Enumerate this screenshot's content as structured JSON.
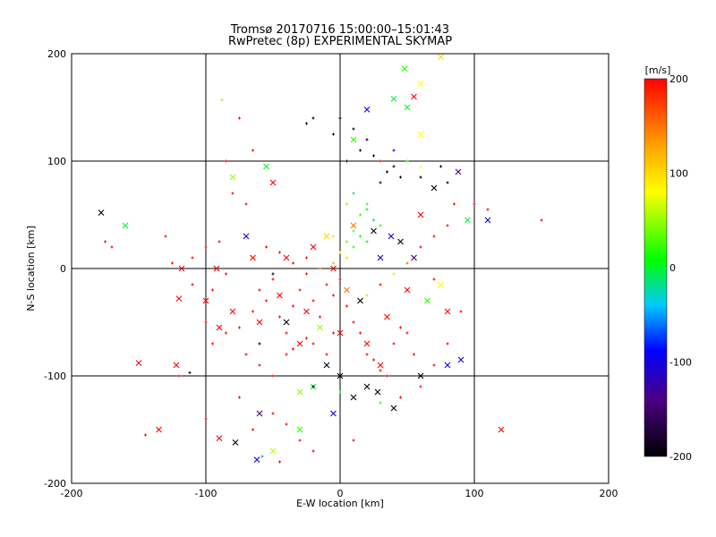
{
  "title_line1": "Tromsø 20170716 15:00:00–15:01:43",
  "title_line2": "RwPretec (8p) EXPERIMENTAL SKYMAP",
  "chart_data": {
    "type": "scatter",
    "xlabel": "E-W location [km]",
    "ylabel": "N-S location [km]",
    "xlim": [
      -200,
      200
    ],
    "ylim": [
      -200,
      200
    ],
    "xticks": [
      -200,
      -100,
      0,
      100,
      200
    ],
    "yticks": [
      -200,
      -100,
      0,
      100,
      200
    ],
    "grid_lines": [
      -100,
      0,
      100
    ],
    "colorbar": {
      "label": "[m/s]",
      "range": [
        -200,
        200
      ],
      "ticks": [
        200,
        100,
        0,
        -100,
        -200
      ],
      "colormap": [
        "#000000",
        "#4b0082",
        "#0000ff",
        "#00c8ff",
        "#00ff00",
        "#ffff00",
        "#ffa500",
        "#ff0000"
      ]
    },
    "markers": {
      "cross": "higher altitude beams (x)",
      "dot": "small plus markers"
    },
    "series": [
      {
        "marker": "cross",
        "points": [
          [
            -178,
            52,
            -200
          ],
          [
            -160,
            40,
            0
          ],
          [
            -122,
            -90,
            200
          ],
          [
            -150,
            -88,
            200
          ],
          [
            -120,
            -28,
            200
          ],
          [
            -90,
            -158,
            200
          ],
          [
            -78,
            -162,
            -200
          ],
          [
            -80,
            85,
            50
          ],
          [
            -60,
            -135,
            -150
          ],
          [
            -62,
            -178,
            -100
          ],
          [
            -55,
            95,
            0
          ],
          [
            -50,
            80,
            200
          ],
          [
            -40,
            -50,
            -200
          ],
          [
            -30,
            -115,
            50
          ],
          [
            -20,
            -110,
            0
          ],
          [
            -30,
            -150,
            20
          ],
          [
            -50,
            -170,
            60
          ],
          [
            -10,
            -90,
            -200
          ],
          [
            0,
            -100,
            -200
          ],
          [
            10,
            -120,
            -200
          ],
          [
            20,
            -110,
            -200
          ],
          [
            40,
            -130,
            -200
          ],
          [
            60,
            -100,
            -200
          ],
          [
            80,
            -90,
            -100
          ],
          [
            90,
            -85,
            -100
          ],
          [
            80,
            -40,
            200
          ],
          [
            75,
            -15,
            80
          ],
          [
            95,
            45,
            0
          ],
          [
            88,
            90,
            -150
          ],
          [
            50,
            150,
            0
          ],
          [
            40,
            158,
            0
          ],
          [
            55,
            160,
            200
          ],
          [
            60,
            172,
            80
          ],
          [
            48,
            186,
            20
          ],
          [
            75,
            197,
            100
          ],
          [
            60,
            125,
            80
          ],
          [
            20,
            148,
            -100
          ],
          [
            10,
            120,
            20
          ],
          [
            110,
            45,
            -100
          ],
          [
            120,
            -150,
            200
          ],
          [
            70,
            75,
            -200
          ],
          [
            60,
            50,
            200
          ],
          [
            45,
            25,
            -200
          ],
          [
            30,
            10,
            -100
          ],
          [
            -20,
            20,
            200
          ],
          [
            -100,
            -30,
            200
          ],
          [
            -135,
            -150,
            200
          ],
          [
            -118,
            0,
            200
          ],
          [
            -92,
            0,
            200
          ],
          [
            -80,
            -40,
            200
          ],
          [
            -70,
            30,
            -100
          ],
          [
            -60,
            -50,
            200
          ],
          [
            -30,
            -70,
            200
          ],
          [
            0,
            -60,
            200
          ],
          [
            20,
            -70,
            200
          ],
          [
            30,
            -90,
            200
          ],
          [
            50,
            -20,
            200
          ],
          [
            -10,
            30,
            100
          ],
          [
            10,
            40,
            150
          ],
          [
            25,
            35,
            -200
          ],
          [
            38,
            30,
            -100
          ],
          [
            55,
            10,
            -150
          ],
          [
            -5,
            0,
            200
          ],
          [
            5,
            -20,
            150
          ],
          [
            15,
            -30,
            -200
          ],
          [
            -45,
            -25,
            200
          ],
          [
            -25,
            -40,
            200
          ],
          [
            35,
            -45,
            200
          ],
          [
            -65,
            10,
            200
          ],
          [
            -90,
            -55,
            200
          ],
          [
            65,
            -30,
            20
          ],
          [
            -15,
            -55,
            50
          ],
          [
            -5,
            -135,
            -100
          ],
          [
            28,
            -115,
            -200
          ],
          [
            -40,
            10,
            200
          ]
        ]
      },
      {
        "marker": "dot",
        "points": [
          [
            -125,
            5,
            200
          ],
          [
            -130,
            30,
            200
          ],
          [
            -170,
            20,
            200
          ],
          [
            -175,
            25,
            200
          ],
          [
            -110,
            -15,
            200
          ],
          [
            -100,
            -50,
            200
          ],
          [
            -95,
            -70,
            200
          ],
          [
            -85,
            -60,
            200
          ],
          [
            -75,
            -55,
            200
          ],
          [
            -70,
            -80,
            200
          ],
          [
            -65,
            -40,
            200
          ],
          [
            -60,
            -20,
            200
          ],
          [
            -55,
            -30,
            200
          ],
          [
            -50,
            -10,
            200
          ],
          [
            -45,
            -45,
            200
          ],
          [
            -40,
            -60,
            200
          ],
          [
            -35,
            -35,
            200
          ],
          [
            -30,
            -20,
            200
          ],
          [
            -25,
            -5,
            200
          ],
          [
            -20,
            -30,
            200
          ],
          [
            -15,
            -45,
            200
          ],
          [
            -10,
            -15,
            200
          ],
          [
            -5,
            -25,
            200
          ],
          [
            0,
            -10,
            200
          ],
          [
            5,
            -35,
            200
          ],
          [
            10,
            -50,
            200
          ],
          [
            15,
            -60,
            200
          ],
          [
            20,
            -80,
            200
          ],
          [
            25,
            -85,
            200
          ],
          [
            30,
            -95,
            200
          ],
          [
            35,
            -100,
            200
          ],
          [
            40,
            -70,
            200
          ],
          [
            45,
            -55,
            200
          ],
          [
            50,
            -60,
            200
          ],
          [
            55,
            -80,
            200
          ],
          [
            -60,
            -90,
            200
          ],
          [
            -50,
            -100,
            200
          ],
          [
            -40,
            -80,
            200
          ],
          [
            -35,
            -75,
            200
          ],
          [
            -25,
            -65,
            200
          ],
          [
            -20,
            -70,
            200
          ],
          [
            -10,
            -80,
            200
          ],
          [
            -5,
            -60,
            200
          ],
          [
            -55,
            20,
            200
          ],
          [
            -45,
            15,
            200
          ],
          [
            -35,
            5,
            200
          ],
          [
            -25,
            10,
            200
          ],
          [
            -15,
            0,
            150
          ],
          [
            -5,
            5,
            120
          ],
          [
            5,
            10,
            100
          ],
          [
            0,
            15,
            80
          ],
          [
            5,
            25,
            40
          ],
          [
            10,
            20,
            20
          ],
          [
            15,
            30,
            10
          ],
          [
            20,
            25,
            0
          ],
          [
            25,
            45,
            -20
          ],
          [
            30,
            40,
            20
          ],
          [
            20,
            55,
            0
          ],
          [
            15,
            50,
            20
          ],
          [
            10,
            35,
            30
          ],
          [
            -5,
            30,
            100
          ],
          [
            5,
            60,
            50
          ],
          [
            10,
            70,
            -10
          ],
          [
            20,
            60,
            20
          ],
          [
            30,
            80,
            -200
          ],
          [
            35,
            90,
            -200
          ],
          [
            40,
            95,
            -200
          ],
          [
            45,
            85,
            -200
          ],
          [
            60,
            85,
            -200
          ],
          [
            75,
            95,
            -200
          ],
          [
            80,
            80,
            -200
          ],
          [
            5,
            100,
            -200
          ],
          [
            15,
            110,
            -200
          ],
          [
            20,
            120,
            -200
          ],
          [
            25,
            105,
            -200
          ],
          [
            -5,
            125,
            -200
          ],
          [
            -20,
            140,
            -200
          ],
          [
            -25,
            135,
            -200
          ],
          [
            0,
            140,
            -200
          ],
          [
            10,
            130,
            -200
          ],
          [
            30,
            100,
            200
          ],
          [
            40,
            110,
            -100
          ],
          [
            50,
            100,
            0
          ],
          [
            60,
            95,
            80
          ],
          [
            85,
            60,
            200
          ],
          [
            100,
            60,
            200
          ],
          [
            110,
            55,
            200
          ],
          [
            150,
            45,
            200
          ],
          [
            80,
            40,
            200
          ],
          [
            70,
            30,
            200
          ],
          [
            60,
            20,
            200
          ],
          [
            50,
            5,
            150
          ],
          [
            40,
            -5,
            100
          ],
          [
            30,
            -15,
            200
          ],
          [
            20,
            -25,
            50
          ],
          [
            -70,
            60,
            200
          ],
          [
            -80,
            70,
            200
          ],
          [
            -85,
            100,
            200
          ],
          [
            -65,
            110,
            200
          ],
          [
            -75,
            140,
            200
          ],
          [
            -88,
            157,
            50
          ],
          [
            -120,
            -100,
            200
          ],
          [
            -112,
            -97,
            -200
          ],
          [
            -145,
            -155,
            200
          ],
          [
            -100,
            -140,
            200
          ],
          [
            -50,
            -135,
            200
          ],
          [
            -40,
            -145,
            200
          ],
          [
            -30,
            -160,
            200
          ],
          [
            -20,
            -170,
            200
          ],
          [
            10,
            -160,
            200
          ],
          [
            -20,
            -110,
            -200
          ],
          [
            0,
            -115,
            0
          ],
          [
            30,
            -125,
            20
          ],
          [
            45,
            -120,
            200
          ],
          [
            60,
            -110,
            200
          ],
          [
            70,
            -90,
            200
          ],
          [
            80,
            -70,
            200
          ],
          [
            90,
            -40,
            200
          ],
          [
            70,
            -10,
            200
          ],
          [
            -75,
            -120,
            200
          ],
          [
            -65,
            -150,
            200
          ],
          [
            -58,
            -175,
            -50
          ],
          [
            -45,
            -180,
            200
          ],
          [
            -60,
            -70,
            -200
          ],
          [
            -50,
            -5,
            -200
          ],
          [
            -85,
            -5,
            200
          ],
          [
            -95,
            -20,
            200
          ],
          [
            -100,
            20,
            200
          ],
          [
            -110,
            10,
            200
          ],
          [
            -90,
            25,
            200
          ]
        ]
      }
    ]
  }
}
